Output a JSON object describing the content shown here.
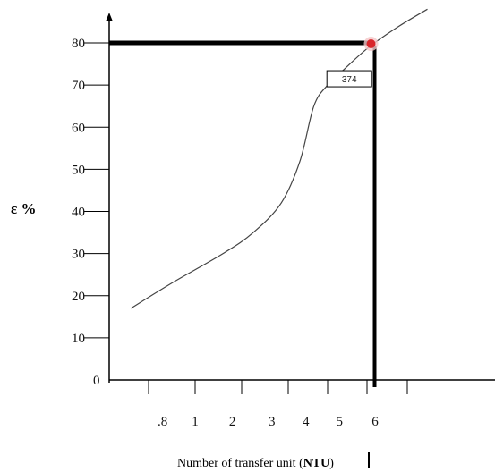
{
  "chart_data": {
    "type": "line",
    "ylabel": "ε %",
    "xlabel_prefix": "Number of transfer unit (",
    "xlabel_bold": "NTU",
    "xlabel_suffix": ")",
    "yticks": [
      "0",
      "10",
      "20",
      "30",
      "40",
      "50",
      "60",
      "70",
      "80"
    ],
    "xticks": [
      ".8",
      "1",
      "2",
      "3",
      "4",
      "5",
      "6"
    ],
    "ylim": [
      0,
      80
    ],
    "series": [
      {
        "x": [
          0.55,
          1.5,
          2.6,
          3.25,
          3.85,
          4.3,
          4.65,
          5.0,
          5.45,
          6.05,
          6.8,
          7.5
        ],
        "y": [
          17,
          23,
          30,
          35,
          42,
          52,
          65,
          70,
          74,
          79,
          84,
          88
        ],
        "color": "#444444"
      }
    ],
    "highlight": {
      "x": 6.1,
      "y": 80,
      "color": "#d9262b"
    },
    "annotation": {
      "text": "374",
      "x": 5.55,
      "y": 71.5
    },
    "grid": false
  }
}
